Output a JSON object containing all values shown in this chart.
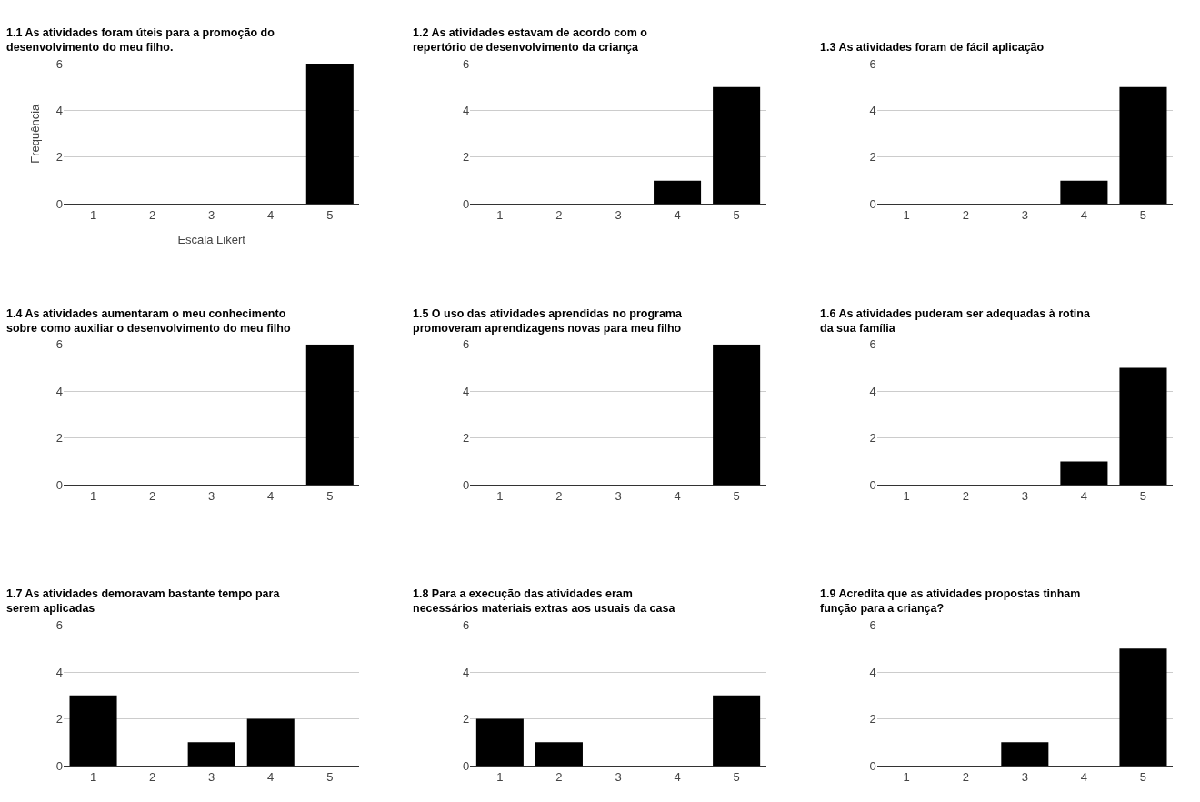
{
  "chart_data": [
    {
      "type": "bar",
      "title": "1.1 As atividades foram úteis para a promoção do desenvolvimento do meu filho.",
      "xlabel": "Escala Likert",
      "ylabel": "Frequência",
      "categories": [
        "1",
        "2",
        "3",
        "4",
        "5"
      ],
      "values": [
        0,
        0,
        0,
        0,
        6
      ],
      "color": "#000000",
      "ylim": [
        0,
        6
      ],
      "yticks": [
        0,
        2,
        4,
        6
      ],
      "grid": "y"
    },
    {
      "type": "bar",
      "title": "1.2 As atividades estavam de acordo com o repertório de desenvolvimento da criança",
      "categories": [
        "1",
        "2",
        "3",
        "4",
        "5"
      ],
      "values": [
        0,
        0,
        0,
        1,
        5
      ],
      "color": "#000000",
      "ylim": [
        0,
        6
      ],
      "yticks": [
        0,
        2,
        4,
        6
      ],
      "grid": "y"
    },
    {
      "type": "bar",
      "title": "1.3 As atividades foram de fácil aplicação",
      "categories": [
        "1",
        "2",
        "3",
        "4",
        "5"
      ],
      "values": [
        0,
        0,
        0,
        1,
        5
      ],
      "color": "#000000",
      "ylim": [
        0,
        6
      ],
      "yticks": [
        0,
        2,
        4,
        6
      ],
      "grid": "y"
    },
    {
      "type": "bar",
      "title": "1.4 As atividades aumentaram o meu conhecimento sobre como auxiliar o desenvolvimento do meu filho",
      "categories": [
        "1",
        "2",
        "3",
        "4",
        "5"
      ],
      "values": [
        0,
        0,
        0,
        0,
        6
      ],
      "color": "#000000",
      "ylim": [
        0,
        6
      ],
      "yticks": [
        0,
        2,
        4,
        6
      ],
      "grid": "y"
    },
    {
      "type": "bar",
      "title": "1.5 O uso das atividades aprendidas no programa promoveram aprendizagens novas para meu filho",
      "categories": [
        "1",
        "2",
        "3",
        "4",
        "5"
      ],
      "values": [
        0,
        0,
        0,
        0,
        6
      ],
      "color": "#000000",
      "ylim": [
        0,
        6
      ],
      "yticks": [
        0,
        2,
        4,
        6
      ],
      "grid": "y"
    },
    {
      "type": "bar",
      "title": "1.6 As atividades puderam ser adequadas à rotina da sua família",
      "categories": [
        "1",
        "2",
        "3",
        "4",
        "5"
      ],
      "values": [
        0,
        0,
        0,
        1,
        5
      ],
      "color": "#000000",
      "ylim": [
        0,
        6
      ],
      "yticks": [
        0,
        2,
        4,
        6
      ],
      "grid": "y"
    },
    {
      "type": "bar",
      "title": "1.7 As atividades demoravam bastante tempo para serem aplicadas",
      "categories": [
        "1",
        "2",
        "3",
        "4",
        "5"
      ],
      "values": [
        3,
        0,
        1,
        2,
        0
      ],
      "color": "#000000",
      "ylim": [
        0,
        6
      ],
      "yticks": [
        0,
        2,
        4,
        6
      ],
      "grid": "y"
    },
    {
      "type": "bar",
      "title": "1.8 Para a execução das atividades eram necessários materiais extras aos usuais da casa",
      "categories": [
        "1",
        "2",
        "3",
        "4",
        "5"
      ],
      "values": [
        2,
        1,
        0,
        0,
        3
      ],
      "color": "#000000",
      "ylim": [
        0,
        6
      ],
      "yticks": [
        0,
        2,
        4,
        6
      ],
      "grid": "y"
    },
    {
      "type": "bar",
      "title": "1.9 Acredita que as atividades propostas tinham função para a criança?",
      "categories": [
        "1",
        "2",
        "3",
        "4",
        "5"
      ],
      "values": [
        0,
        0,
        1,
        0,
        5
      ],
      "color": "#000000",
      "ylim": [
        0,
        6
      ],
      "yticks": [
        0,
        2,
        4,
        6
      ],
      "grid": "y"
    }
  ]
}
